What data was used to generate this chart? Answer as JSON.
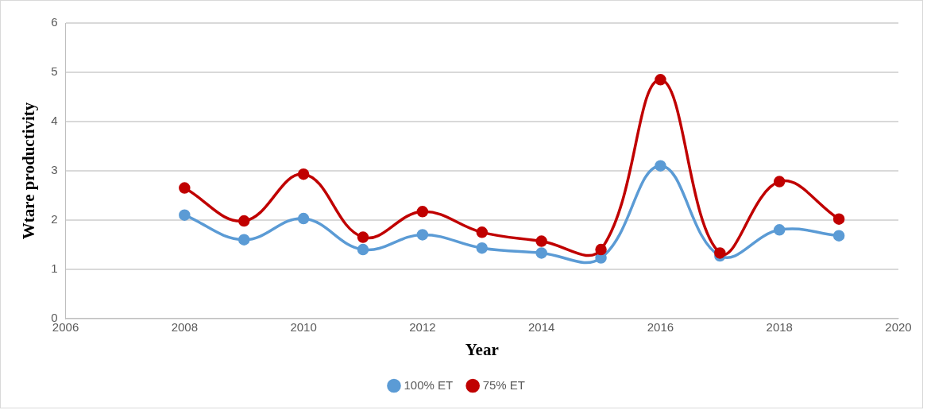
{
  "chart_data": {
    "type": "line",
    "xlabel": "Year",
    "ylabel": "Wtare productivity",
    "x": [
      2008,
      2009,
      2010,
      2011,
      2012,
      2013,
      2014,
      2015,
      2016,
      2017,
      2018,
      2019
    ],
    "series": [
      {
        "name": "100% ET",
        "color": "#5b9bd5",
        "values": [
          2.1,
          1.6,
          2.03,
          1.4,
          1.7,
          1.43,
          1.33,
          1.23,
          3.1,
          1.27,
          1.8,
          1.68
        ]
      },
      {
        "name": "75% ET",
        "color": "#c00000",
        "values": [
          2.65,
          1.98,
          2.93,
          1.65,
          2.17,
          1.75,
          1.57,
          1.4,
          4.85,
          1.33,
          2.78,
          2.02
        ]
      }
    ],
    "xlim": [
      2006,
      2020
    ],
    "xticks": [
      2006,
      2008,
      2010,
      2012,
      2014,
      2016,
      2018,
      2020
    ],
    "ylim": [
      0,
      6
    ],
    "yticks": [
      0,
      1,
      2,
      3,
      4,
      5,
      6
    ],
    "grid": "y",
    "legend": "bottom",
    "marker": "circle",
    "line_style": "solid"
  }
}
